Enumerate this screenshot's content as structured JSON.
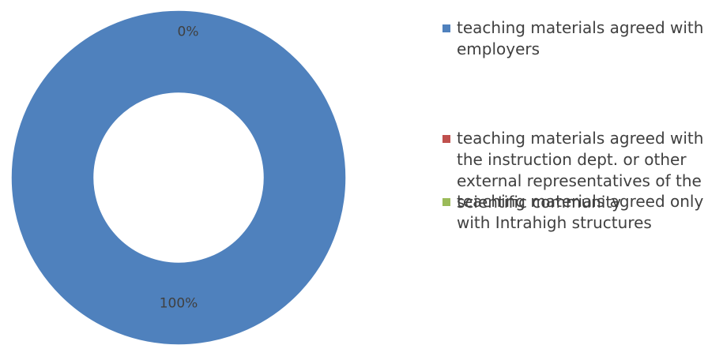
{
  "chart_data": {
    "type": "donut",
    "categories": [
      " teaching materials agreed with employers",
      "teaching materials agreed with the instruction dept. or other external representatives of the scientific community",
      "teaching materials agreed only with Intrahigh structures"
    ],
    "values": [
      100,
      0,
      0
    ],
    "value_labels": [
      "100%",
      "0%",
      null
    ],
    "colors": [
      "#4f81bd",
      "#c0504d",
      "#9bbb59"
    ],
    "legend": "right"
  }
}
